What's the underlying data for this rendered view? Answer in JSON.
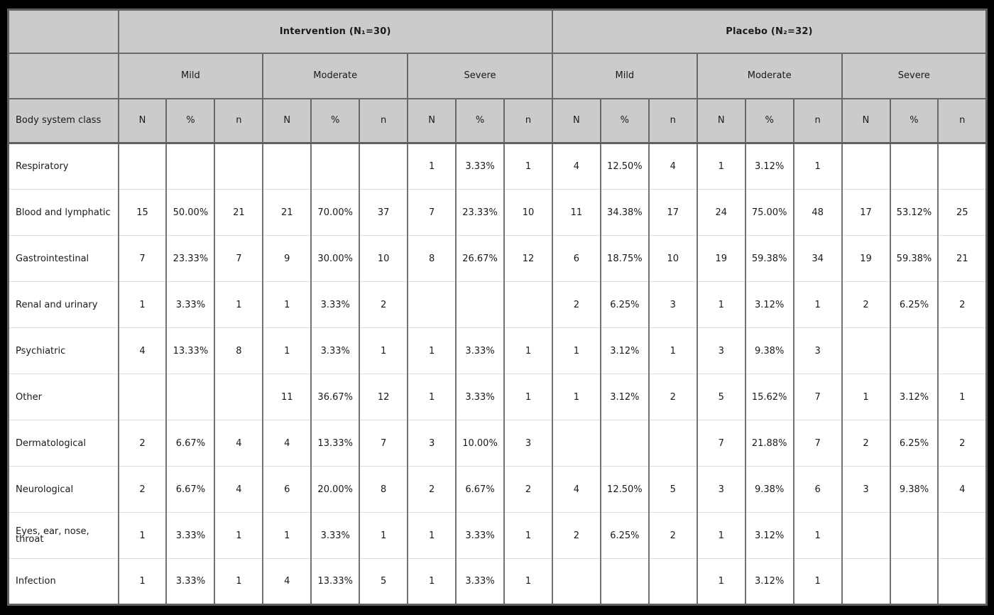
{
  "colors": {
    "page_background": "#000000",
    "header_background": "#cbcbcb",
    "header_border": "#696969",
    "cell_border": "#737373",
    "row_divider": "#dcdcdc",
    "cell_background": "#ffffff",
    "text": "#1a1a1a"
  },
  "chart_data": {
    "type": "table",
    "title": "",
    "corner_label": "",
    "row_header_label": "Body system class",
    "column_groups": [
      {
        "label": "Intervention (N₁=30)",
        "subgroups": [
          "Mild",
          "Moderate",
          "Severe"
        ]
      },
      {
        "label": "Placebo (N₂=32)",
        "subgroups": [
          "Mild",
          "Moderate",
          "Severe"
        ]
      }
    ],
    "stat_columns": [
      "N",
      "%",
      "n"
    ],
    "rows": [
      {
        "label": "Respiratory",
        "values": [
          "",
          "",
          "",
          "",
          "",
          "",
          "1",
          "3.33%",
          "1",
          "4",
          "12.50%",
          "4",
          "1",
          "3.12%",
          "1",
          "",
          "",
          ""
        ]
      },
      {
        "label": "Blood and lymphatic",
        "values": [
          "15",
          "50.00%",
          "21",
          "21",
          "70.00%",
          "37",
          "7",
          "23.33%",
          "10",
          "11",
          "34.38%",
          "17",
          "24",
          "75.00%",
          "48",
          "17",
          "53.12%",
          "25"
        ]
      },
      {
        "label": "Gastrointestinal",
        "values": [
          "7",
          "23.33%",
          "7",
          "9",
          "30.00%",
          "10",
          "8",
          "26.67%",
          "12",
          "6",
          "18.75%",
          "10",
          "19",
          "59.38%",
          "34",
          "19",
          "59.38%",
          "21"
        ]
      },
      {
        "label": "Renal and urinary",
        "values": [
          "1",
          "3.33%",
          "1",
          "1",
          "3.33%",
          "2",
          "",
          "",
          "",
          "2",
          "6.25%",
          "3",
          "1",
          "3.12%",
          "1",
          "2",
          "6.25%",
          "2"
        ]
      },
      {
        "label": "Psychiatric",
        "values": [
          "4",
          "13.33%",
          "8",
          "1",
          "3.33%",
          "1",
          "1",
          "3.33%",
          "1",
          "1",
          "3.12%",
          "1",
          "3",
          "9.38%",
          "3",
          "",
          "",
          ""
        ]
      },
      {
        "label": "Other",
        "values": [
          "",
          "",
          "",
          "11",
          "36.67%",
          "12",
          "1",
          "3.33%",
          "1",
          "1",
          "3.12%",
          "2",
          "5",
          "15.62%",
          "7",
          "1",
          "3.12%",
          "1"
        ]
      },
      {
        "label": "Dermatological",
        "values": [
          "2",
          "6.67%",
          "4",
          "4",
          "13.33%",
          "7",
          "3",
          "10.00%",
          "3",
          "",
          "",
          "",
          "7",
          "21.88%",
          "7",
          "2",
          "6.25%",
          "2"
        ]
      },
      {
        "label": "Neurological",
        "values": [
          "2",
          "6.67%",
          "4",
          "6",
          "20.00%",
          "8",
          "2",
          "6.67%",
          "2",
          "4",
          "12.50%",
          "5",
          "3",
          "9.38%",
          "6",
          "3",
          "9.38%",
          "4"
        ]
      },
      {
        "label": "Eyes, ear, nose, throat",
        "values": [
          "1",
          "3.33%",
          "1",
          "1",
          "3.33%",
          "1",
          "1",
          "3.33%",
          "1",
          "2",
          "6.25%",
          "2",
          "1",
          "3.12%",
          "1",
          "",
          "",
          ""
        ]
      },
      {
        "label": "Infection",
        "values": [
          "1",
          "3.33%",
          "1",
          "4",
          "13.33%",
          "5",
          "1",
          "3.33%",
          "1",
          "",
          "",
          "",
          "1",
          "3.12%",
          "1",
          "",
          "",
          ""
        ]
      }
    ]
  }
}
